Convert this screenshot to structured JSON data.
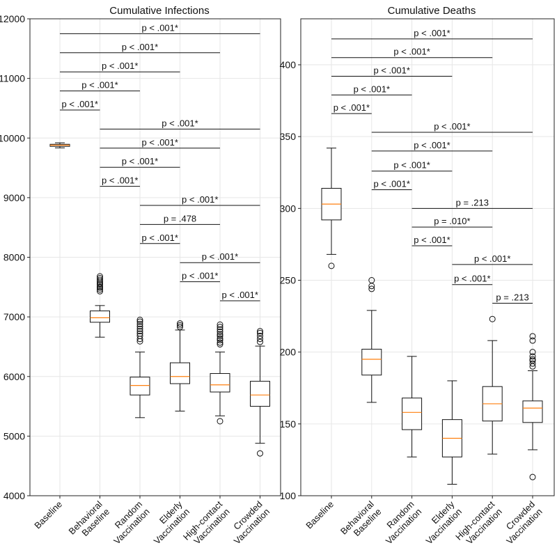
{
  "chart_data": [
    {
      "type": "box",
      "title": "Cumulative Infections",
      "categories": [
        [
          "Baseline"
        ],
        [
          "Behavioral",
          "Baseline"
        ],
        [
          "Random",
          "Vaccination"
        ],
        [
          "Elderly",
          "Vaccination"
        ],
        [
          "High-contact",
          "Vaccination"
        ],
        [
          "Crowded",
          "Vaccination"
        ]
      ],
      "ylim": [
        4000,
        12000
      ],
      "yticks": [
        4000,
        5000,
        6000,
        7000,
        8000,
        9000,
        10000,
        11000,
        12000
      ],
      "grid": true,
      "boxes": [
        {
          "q1": 9860,
          "median": 9880,
          "q3": 9895,
          "whisker_low": 9835,
          "whisker_high": 9920,
          "outliers": []
        },
        {
          "q1": 6910,
          "median": 6985,
          "q3": 7100,
          "whisker_low": 6660,
          "whisker_high": 7190,
          "outliers": [
            7430,
            7460,
            7490,
            7510,
            7540,
            7560,
            7590,
            7620,
            7650,
            7680
          ]
        },
        {
          "q1": 5690,
          "median": 5850,
          "q3": 5990,
          "whisker_low": 5310,
          "whisker_high": 6410,
          "outliers": [
            6590,
            6630,
            6680,
            6720,
            6760,
            6800,
            6840,
            6880,
            6920,
            6950
          ]
        },
        {
          "q1": 5880,
          "median": 6000,
          "q3": 6230,
          "whisker_low": 5420,
          "whisker_high": 6780,
          "outliers": [
            6830,
            6860,
            6890
          ]
        },
        {
          "q1": 5740,
          "median": 5860,
          "q3": 6050,
          "whisker_low": 5340,
          "whisker_high": 6410,
          "outliers": [
            5250,
            6540,
            6570,
            6610,
            6640,
            6680,
            6710,
            6750,
            6790,
            6830,
            6870
          ]
        },
        {
          "q1": 5500,
          "median": 5690,
          "q3": 5920,
          "whisker_low": 4880,
          "whisker_high": 6510,
          "outliers": [
            4710,
            6580,
            6630,
            6680,
            6730,
            6760
          ]
        }
      ],
      "comparisons": [
        {
          "from": 0,
          "to": 5,
          "y": 11750,
          "label": "p < .001*"
        },
        {
          "from": 0,
          "to": 4,
          "y": 11430,
          "label": "p < .001*"
        },
        {
          "from": 0,
          "to": 3,
          "y": 11110,
          "label": "p < .001*"
        },
        {
          "from": 0,
          "to": 2,
          "y": 10790,
          "label": "p < .001*"
        },
        {
          "from": 0,
          "to": 1,
          "y": 10470,
          "label": "p < .001*"
        },
        {
          "from": 1,
          "to": 5,
          "y": 10150,
          "label": "p < .001*"
        },
        {
          "from": 1,
          "to": 4,
          "y": 9830,
          "label": "p < .001*"
        },
        {
          "from": 1,
          "to": 3,
          "y": 9510,
          "label": "p < .001*"
        },
        {
          "from": 1,
          "to": 2,
          "y": 9190,
          "label": "p < .001*"
        },
        {
          "from": 2,
          "to": 5,
          "y": 8870,
          "label": "p < .001*"
        },
        {
          "from": 2,
          "to": 4,
          "y": 8550,
          "label": "p = .478"
        },
        {
          "from": 2,
          "to": 3,
          "y": 8230,
          "label": "p < .001*"
        },
        {
          "from": 3,
          "to": 5,
          "y": 7910,
          "label": "p < .001*"
        },
        {
          "from": 3,
          "to": 4,
          "y": 7590,
          "label": "p < .001*"
        },
        {
          "from": 4,
          "to": 5,
          "y": 7270,
          "label": "p < .001*"
        }
      ],
      "colors": {
        "median": "#ff7f0e",
        "box": "#111111"
      }
    },
    {
      "type": "box",
      "title": "Cumulative Deaths",
      "categories": [
        [
          "Baseline"
        ],
        [
          "Behavioral",
          "Baseline"
        ],
        [
          "Random",
          "Vaccination"
        ],
        [
          "Elderly",
          "Vaccination"
        ],
        [
          "High-contact",
          "Vaccination"
        ],
        [
          "Crowded",
          "Vaccination"
        ]
      ],
      "ylim": [
        100,
        432
      ],
      "yticks": [
        100,
        150,
        200,
        250,
        300,
        350,
        400
      ],
      "grid": true,
      "boxes": [
        {
          "q1": 292,
          "median": 303,
          "q3": 314,
          "whisker_low": 268,
          "whisker_high": 342,
          "outliers": [
            260
          ]
        },
        {
          "q1": 184,
          "median": 195,
          "q3": 202,
          "whisker_low": 165,
          "whisker_high": 229,
          "outliers": [
            244,
            246,
            250
          ]
        },
        {
          "q1": 146,
          "median": 158,
          "q3": 168,
          "whisker_low": 127,
          "whisker_high": 197,
          "outliers": []
        },
        {
          "q1": 127,
          "median": 140,
          "q3": 153,
          "whisker_low": 108,
          "whisker_high": 180,
          "outliers": []
        },
        {
          "q1": 152,
          "median": 164,
          "q3": 176,
          "whisker_low": 129,
          "whisker_high": 208,
          "outliers": [
            223
          ]
        },
        {
          "q1": 151,
          "median": 161,
          "q3": 166,
          "whisker_low": 132,
          "whisker_high": 187,
          "outliers": [
            113,
            190,
            192,
            194,
            195,
            197,
            200,
            208,
            211
          ]
        }
      ],
      "comparisons": [
        {
          "from": 0,
          "to": 5,
          "y": 418,
          "label": "p < .001*"
        },
        {
          "from": 0,
          "to": 4,
          "y": 405,
          "label": "p < .001*"
        },
        {
          "from": 0,
          "to": 3,
          "y": 392,
          "label": "p < .001*"
        },
        {
          "from": 0,
          "to": 2,
          "y": 379,
          "label": "p < .001*"
        },
        {
          "from": 0,
          "to": 1,
          "y": 366,
          "label": "p < .001*"
        },
        {
          "from": 1,
          "to": 5,
          "y": 353,
          "label": "p < .001*"
        },
        {
          "from": 1,
          "to": 4,
          "y": 340,
          "label": "p < .001*"
        },
        {
          "from": 1,
          "to": 3,
          "y": 326,
          "label": "p < .001*"
        },
        {
          "from": 1,
          "to": 2,
          "y": 313,
          "label": "p < .001*"
        },
        {
          "from": 2,
          "to": 5,
          "y": 300,
          "label": "p = .213"
        },
        {
          "from": 2,
          "to": 4,
          "y": 287,
          "label": "p = .010*"
        },
        {
          "from": 2,
          "to": 3,
          "y": 274,
          "label": "p < .001*"
        },
        {
          "from": 3,
          "to": 5,
          "y": 261,
          "label": "p < .001*"
        },
        {
          "from": 3,
          "to": 4,
          "y": 247,
          "label": "p < .001*"
        },
        {
          "from": 4,
          "to": 5,
          "y": 234,
          "label": "p = .213"
        }
      ],
      "colors": {
        "median": "#ff7f0e",
        "box": "#111111"
      }
    }
  ]
}
